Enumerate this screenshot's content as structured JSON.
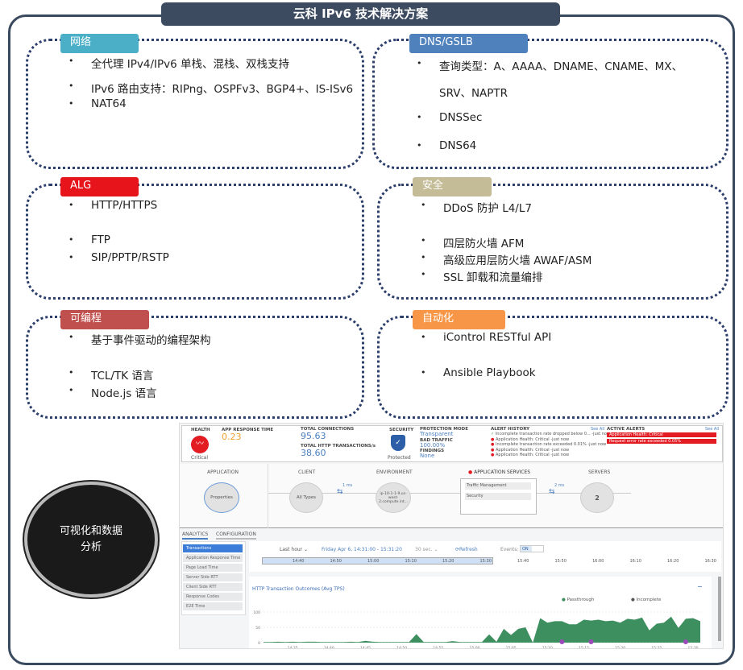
{
  "title": "云科 IPv6 技术解决方案",
  "sections": [
    {
      "label": "网络",
      "color": "#4bafc8",
      "items": [
        "全代理 IPv4/IPv6 单栈、混栈、双栈支持",
        "IPv6 路由支持：RIPng、OSPFv3、BGP4+、IS-ISv6",
        "NAT64"
      ]
    },
    {
      "label": "DNS/GSLB",
      "color": "#4f81bd",
      "items": [
        "查询类型：A、AAAA、DNAME、CNAME、MX、",
        "SRV、NAPTR",
        "DNSSec",
        "DNS64"
      ]
    },
    {
      "label": "ALG",
      "color": "#e8141c",
      "items": [
        "HTTP/HTTPS",
        "FTP",
        "SIP/PPTP/RSTP"
      ]
    },
    {
      "label": "安全",
      "color": "#c4bc96",
      "items": [
        "DDoS 防护 L4/L7",
        "四层防火墙 AFM",
        "高级应用层防火墙 AWAF/ASM",
        "SSL 卸载和流量编排"
      ]
    },
    {
      "label": "可编程",
      "color": "#c0504d",
      "items": [
        "基于事件驱动的编程架构",
        "TCL/TK 语言",
        "Node.js 语言"
      ]
    },
    {
      "label": "自动化",
      "color": "#f79646",
      "items": [
        "iControl RESTful API",
        "Ansible Playbook"
      ]
    }
  ],
  "circle_text": "可视化和数据分析",
  "dashboard": {
    "health": {
      "label": "HEALTH",
      "status": "Critical"
    },
    "app_response": {
      "label": "APP RESPONSE TIME",
      "value": "0.23"
    },
    "connections": {
      "label": "TOTAL CONNECTIONS",
      "value": "95.63",
      "http_label": "TOTAL HTTP TRANSACTIONS/s",
      "http_value": "38.60"
    },
    "security": {
      "label": "SECURITY",
      "status": "Protected"
    },
    "protection": {
      "mode_label": "PROTECTION MODE",
      "mode": "Transparent",
      "bad_label": "BAD TRAFFIC",
      "bad": "100.00%",
      "findings_label": "FINDINGS",
      "findings": "None"
    },
    "alert_history": {
      "label": "ALERT HISTORY",
      "see_all": "See All",
      "items": [
        "Incomplete transaction rate dropped below 0... -just now",
        "Application Health: Critical -just now",
        "Incomplete transaction rate exceeded 0.01% -just now",
        "Application Health: Critical -just now",
        "Application Health: Critical -just now"
      ]
    },
    "active_alerts": {
      "label": "ACTIVE ALERTS",
      "see_all": "See All",
      "items": [
        "Application Health: Critical",
        "Request error rate exceeded 0.05%"
      ]
    },
    "topology": {
      "application": "APPLICATION",
      "client": "CLIENT",
      "environment": "ENVIRONMENT",
      "app_services": "APPLICATION SERVICES",
      "servers": "SERVERS",
      "app_node": "Properties",
      "client_node": "All Types",
      "env_node": "ip-10-1-1-9.us-west-2.compute.int...",
      "services": [
        "Traffic Management",
        "Security"
      ],
      "servers_node": "2",
      "latency_client": "1 ms",
      "latency_server": "2 ms"
    },
    "tabs": [
      "ANALYTICS",
      "CONFIGURATION"
    ],
    "side_items": [
      "Transactions",
      "Application Response Time",
      "Page Load Time",
      "Server Side RTT",
      "Client Side RTT",
      "Response Codes",
      "E2E Time"
    ],
    "controls": {
      "range": "Last hour ⌄",
      "date": "Friday Apr 6, 14:31:00 - 15:31:20",
      "interval": "30 sec. ⌄",
      "refresh": "Refresh",
      "events_label": "Events:",
      "events": "ON"
    },
    "timeline": [
      "14:40",
      "14:50",
      "15:00",
      "15:10",
      "15:20",
      "15:30",
      "15:40",
      "15:50",
      "16:00",
      "16:10",
      "16:20",
      "16:30"
    ]
  },
  "chart_data": {
    "type": "area",
    "title": "HTTP Transaction Outcomes (Avg TPS)",
    "legend": [
      "Passthrough",
      "Incomplete"
    ],
    "colors": {
      "Passthrough": "#3d8f5f",
      "Incomplete": "#111111"
    },
    "ylim": [
      0,
      100
    ],
    "yticks": [
      "100",
      "50",
      "0"
    ],
    "xticks": [
      "14:35",
      "14:40",
      "14:45",
      "14:50",
      "14:55",
      "15:00",
      "15:05",
      "15:10",
      "15:15",
      "15:20",
      "15:25",
      "15:30"
    ],
    "x_start": "14:31",
    "x_end": "15:31",
    "series": [
      {
        "name": "Passthrough",
        "values": [
          2,
          2,
          3,
          2,
          3,
          2,
          3,
          3,
          2,
          2,
          2,
          2,
          3,
          2,
          6,
          3,
          2,
          2,
          2,
          2,
          2,
          28,
          2,
          2,
          2,
          2,
          5,
          2,
          2,
          2,
          2,
          27,
          3,
          45,
          25,
          45,
          50,
          0,
          80,
          65,
          70,
          70,
          60,
          60,
          75,
          72,
          75,
          70,
          72,
          65,
          78,
          75,
          82,
          40,
          62,
          65,
          85,
          48,
          78,
          80,
          70
        ]
      }
    ],
    "event_markers": [
      "15:12",
      "15:16",
      "15:29"
    ]
  }
}
